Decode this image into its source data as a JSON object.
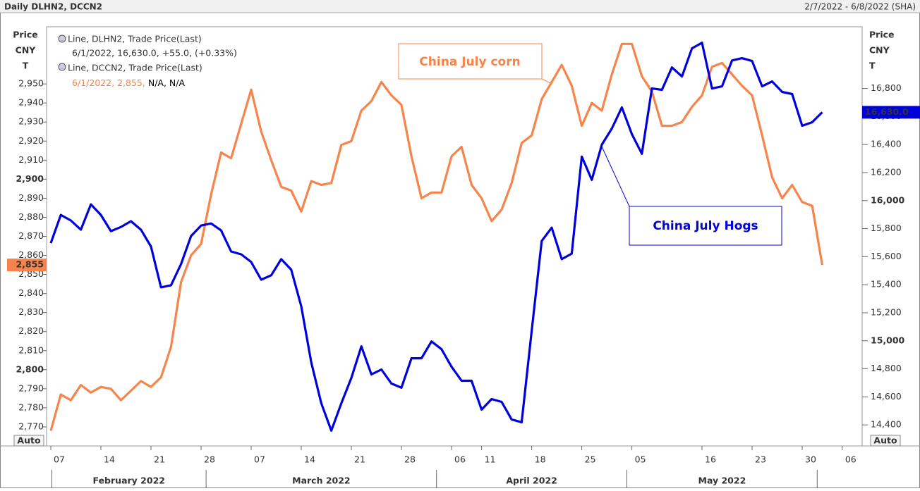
{
  "chart_data": {
    "type": "line",
    "title": "Daily DLHN2, DCCN2",
    "subtitle": "2/7/2022 - 6/8/2022 (SHA)",
    "y_label": [
      "Price",
      "CNY",
      "T"
    ],
    "y2_label": [
      "Price",
      "CNY",
      "T"
    ],
    "auto_labels": [
      "Auto",
      "Auto"
    ],
    "categories": [
      "07",
      null,
      null,
      null,
      null,
      "14",
      null,
      null,
      null,
      null,
      "21",
      null,
      null,
      null,
      null,
      "28",
      null,
      null,
      null,
      null,
      "07",
      null,
      null,
      null,
      null,
      "14",
      null,
      null,
      null,
      null,
      "21",
      null,
      null,
      null,
      null,
      "28",
      null,
      null,
      null,
      null,
      "06",
      null,
      null,
      "11",
      null,
      null,
      null,
      null,
      "18",
      null,
      null,
      null,
      null,
      "25",
      null,
      null,
      null,
      null,
      "05",
      null,
      null,
      null,
      null,
      null,
      null,
      "16",
      null,
      null,
      null,
      null,
      "23",
      null,
      null,
      null,
      null,
      "30",
      null,
      null,
      null,
      "06"
    ],
    "months": [
      "February 2022",
      "March 2022",
      "April 2022",
      "May 2022"
    ],
    "series": [
      {
        "name": "Line, DLHN2, Trade Price(Last)",
        "detail": "6/1/2022, 16,630.0, +55.0, (+0.33%)",
        "last_label": "16,630.0",
        "color": "#0000dd",
        "axis": "y2",
        "values": [
          15697,
          15898,
          15858,
          15792,
          15973,
          15898,
          15782,
          15812,
          15853,
          15792,
          15672,
          15381,
          15396,
          15547,
          15747,
          15822,
          15837,
          15787,
          15637,
          15617,
          15562,
          15436,
          15467,
          15582,
          15507,
          15246,
          14845,
          14554,
          14359,
          14554,
          14735,
          14960,
          14760,
          14795,
          14695,
          14665,
          14875,
          14875,
          14995,
          14940,
          14815,
          14715,
          14715,
          14509,
          14584,
          14564,
          14439,
          14419,
          15070,
          15712,
          15807,
          15582,
          15622,
          16314,
          16148,
          16399,
          16514,
          16665,
          16474,
          16334,
          16800,
          16790,
          16950,
          16885,
          17086,
          17126,
          16800,
          16815,
          17000,
          17016,
          16996,
          16815,
          16850,
          16775,
          16760,
          16534,
          16559,
          16630,
          null,
          null
        ]
      },
      {
        "name": "Line, DCCN2, Trade Price(Last)",
        "detail": "6/1/2022, 2,855,",
        "detail_extra": "N/A, N/A",
        "last_label": "2,855",
        "color": "#f7844a",
        "values": [
          2768,
          2787,
          2784,
          2792,
          2788,
          2791,
          2790,
          2784,
          2789,
          2794,
          2791,
          2796,
          2812,
          2846,
          2860,
          2866,
          2892,
          2914,
          2911,
          2929,
          2947,
          2925,
          2910,
          2896,
          2894,
          2883,
          2899,
          2897,
          2898,
          2918,
          2920,
          2936,
          2941,
          2951,
          2944,
          2939,
          2912,
          2890,
          2893,
          2893,
          2912,
          2917,
          2897,
          2890,
          2878,
          2884,
          2898,
          2919,
          2923,
          2942,
          2951,
          2960,
          2949,
          2928,
          2940,
          2936,
          2955,
          2971,
          2971,
          2954,
          2946,
          2928,
          2928,
          2930,
          2938,
          2944,
          2959,
          2961,
          2955,
          2949,
          2944,
          2923,
          2901,
          2890,
          2897,
          2888,
          2886,
          2855,
          null,
          null
        ]
      }
    ],
    "annotations": [
      "China July corn",
      "China July Hogs"
    ],
    "ylim": [
      2760,
      2980
    ],
    "yticks": [
      {
        "value": 2770,
        "label": "2,770"
      },
      {
        "value": 2780,
        "label": "2,780"
      },
      {
        "value": 2790,
        "label": "2,790"
      },
      {
        "value": 2800,
        "label": "2,800"
      },
      {
        "value": 2810,
        "label": "2,810"
      },
      {
        "value": 2820,
        "label": "2,820"
      },
      {
        "value": 2830,
        "label": "2,830"
      },
      {
        "value": 2840,
        "label": "2,840"
      },
      {
        "value": 2850,
        "label": "2,850"
      },
      {
        "value": 2860,
        "label": "2,860"
      },
      {
        "value": 2870,
        "label": "2,870"
      },
      {
        "value": 2880,
        "label": "2,880"
      },
      {
        "value": 2890,
        "label": "2,890"
      },
      {
        "value": 2900,
        "label": "2,900"
      },
      {
        "value": 2910,
        "label": "2,910"
      },
      {
        "value": 2920,
        "label": "2,920"
      },
      {
        "value": 2930,
        "label": "2,930"
      },
      {
        "value": 2940,
        "label": "2,940"
      },
      {
        "value": 2950,
        "label": "2,950"
      }
    ],
    "y2lim": [
      14250,
      17240
    ],
    "y2ticks": [
      {
        "value": 14400,
        "label": "14,400"
      },
      {
        "value": 14600,
        "label": "14,600"
      },
      {
        "value": 14800,
        "label": "14,800"
      },
      {
        "value": 15000,
        "label": "15,000"
      },
      {
        "value": 15200,
        "label": "15,200"
      },
      {
        "value": 15400,
        "label": "15,400"
      },
      {
        "value": 15600,
        "label": "15,600"
      },
      {
        "value": 15800,
        "label": "15,800"
      },
      {
        "value": 16000,
        "label": "16,000"
      },
      {
        "value": 16200,
        "label": "16,200"
      },
      {
        "value": 16400,
        "label": "16,400"
      },
      {
        "value": 16600,
        "label": "16,600"
      },
      {
        "value": 16800,
        "label": "16,800"
      }
    ],
    "grid": false
  }
}
